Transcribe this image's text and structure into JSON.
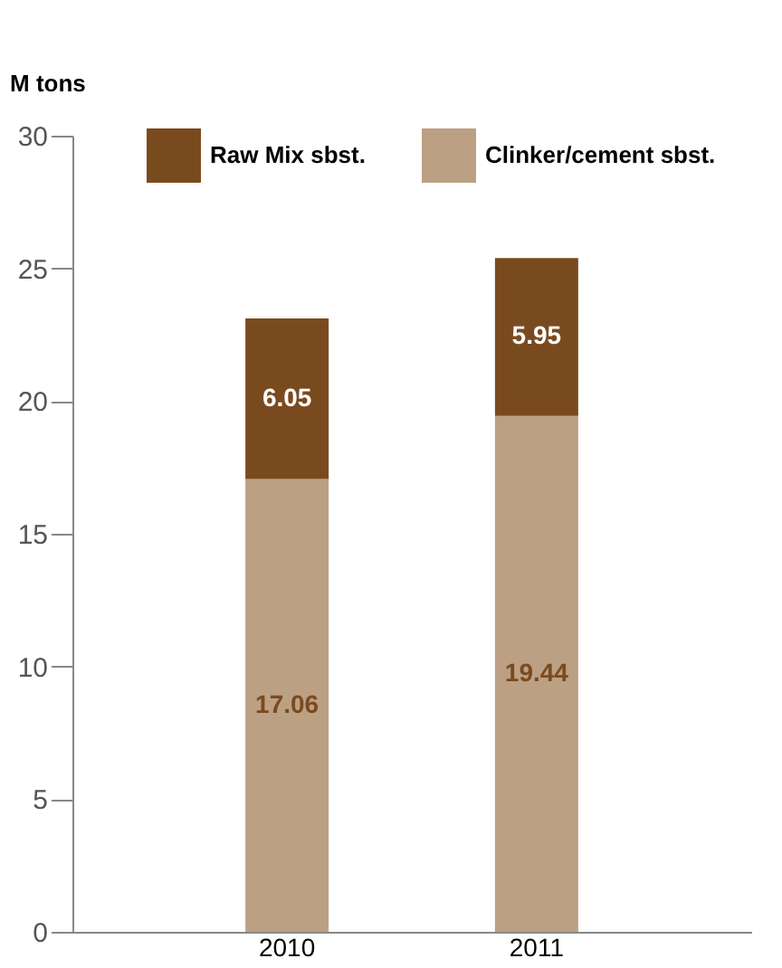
{
  "chart_data": {
    "type": "bar",
    "stacked": true,
    "ylabel": "M tons",
    "categories": [
      "2010",
      "2011"
    ],
    "series": [
      {
        "name": "Clinker/cement sbst.",
        "color": "#bca084",
        "values": [
          17.06,
          19.44
        ]
      },
      {
        "name": "Raw Mix sbst.",
        "color": "#7a4a1f",
        "values": [
          6.05,
          5.95
        ]
      }
    ],
    "ylim": [
      0,
      30
    ],
    "yticks": [
      0,
      5,
      10,
      15,
      20,
      25,
      30
    ],
    "grid": false,
    "legend": "top",
    "data_labels": true
  }
}
